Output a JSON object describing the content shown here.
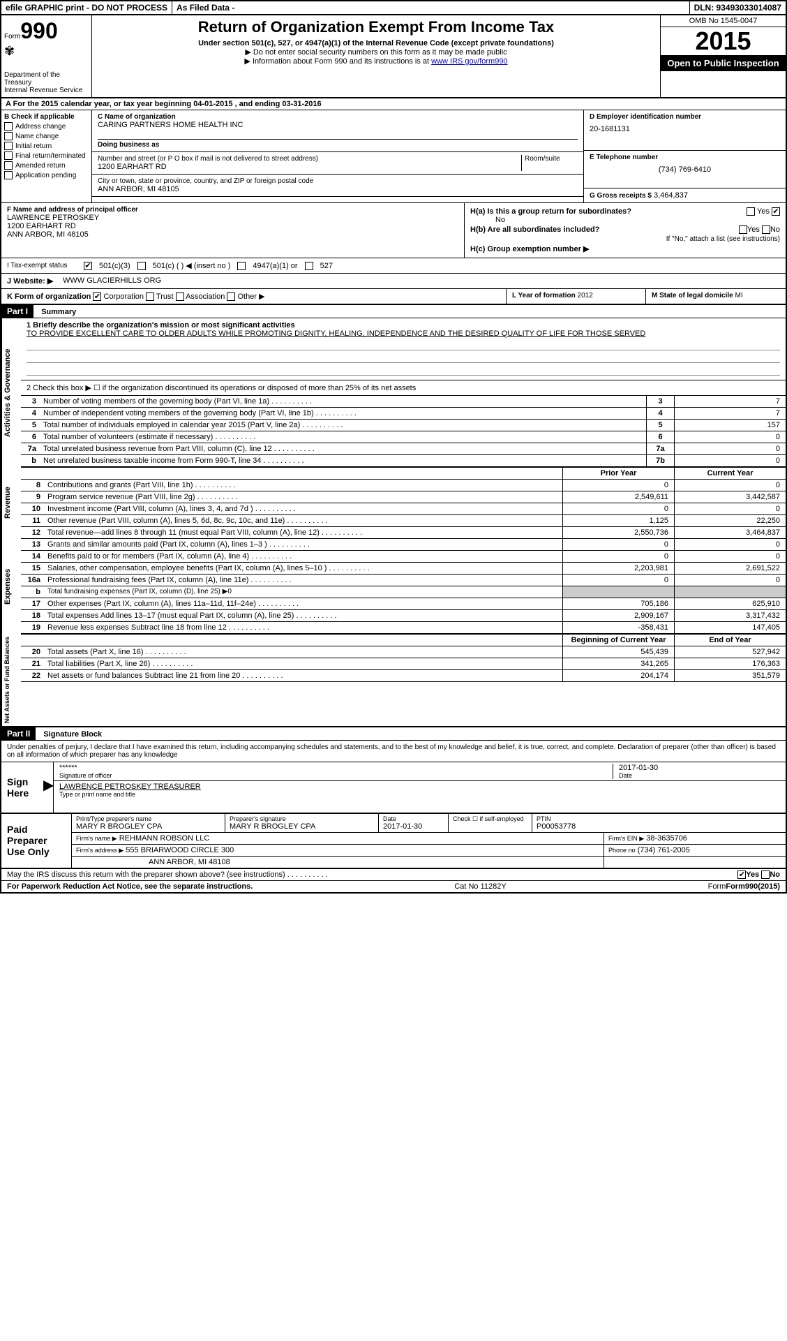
{
  "topbar": {
    "left": "efile GRAPHIC print - DO NOT PROCESS",
    "mid": "As Filed Data -",
    "right": "DLN: 93493033014087"
  },
  "header": {
    "form_prefix": "Form",
    "form_num": "990",
    "dept": "Department of the Treasury",
    "irs": "Internal Revenue Service",
    "title": "Return of Organization Exempt From Income Tax",
    "sub": "Under section 501(c), 527, or 4947(a)(1) of the Internal Revenue Code (except private foundations)",
    "note1": "▶ Do not enter social security numbers on this form as it may be made public",
    "note2_pre": "▶ Information about Form 990 and its instructions is at ",
    "note2_link": "www IRS gov/form990",
    "omb": "OMB No 1545-0047",
    "year": "2015",
    "inspect": "Open to Public Inspection"
  },
  "rowA": {
    "text_pre": "A  For the 2015 calendar year, or tax year beginning ",
    "begin": "04-01-2015",
    "text_mid": "  , and ending ",
    "end": "03-31-2016"
  },
  "colB": {
    "hdr": "B Check if applicable",
    "items": [
      "Address change",
      "Name change",
      "Initial return",
      "Final return/terminated",
      "Amended return",
      "Application pending"
    ]
  },
  "colC": {
    "name_lbl": "C Name of organization",
    "name": "CARING PARTNERS HOME HEALTH INC",
    "dba_lbl": "Doing business as",
    "addr_lbl": "Number and street (or P O box if mail is not delivered to street address)",
    "room_lbl": "Room/suite",
    "addr": "1200 EARHART RD",
    "city_lbl": "City or town, state or province, country, and ZIP or foreign postal code",
    "city": "ANN ARBOR, MI 48105"
  },
  "colD": {
    "lbl": "D Employer identification number",
    "val": "20-1681131"
  },
  "colE": {
    "lbl": "E Telephone number",
    "val": "(734) 769-6410"
  },
  "colG": {
    "lbl": "G Gross receipts $",
    "val": "3,464,837"
  },
  "sectionF": {
    "lbl": "F Name and address of principal officer",
    "name": "LAWRENCE PETROSKEY",
    "addr1": "1200 EARHART RD",
    "addr2": "ANN ARBOR, MI 48105"
  },
  "sectionH": {
    "a_lbl": "H(a) Is this a group return for subordinates?",
    "a_val": "No",
    "b_lbl": "H(b) Are all subordinates included?",
    "b_note": "If \"No,\" attach a list (see instructions)",
    "c_lbl": "H(c) Group exemption number ▶"
  },
  "statusI": {
    "lbl": "I  Tax-exempt status",
    "opts": [
      "501(c)(3)",
      "501(c) (  ) ◀ (insert no )",
      "4947(a)(1) or",
      "527"
    ]
  },
  "website": {
    "lbl": "J  Website: ▶",
    "val": "WWW GLACIERHILLS ORG"
  },
  "rowK": {
    "lbl": "K Form of organization",
    "opts": [
      "Corporation",
      "Trust",
      "Association",
      "Other ▶"
    ]
  },
  "rowL": {
    "lbl": "L Year of formation",
    "val": "2012"
  },
  "rowM": {
    "lbl": "M State of legal domicile",
    "val": "MI"
  },
  "part1": {
    "hdr": "Part I",
    "title": "Summary"
  },
  "mission": {
    "label": "1 Briefly describe the organization's mission or most significant activities",
    "text": "TO PROVIDE EXCELLENT CARE TO OLDER ADULTS WHILE PROMOTING DIGNITY, HEALING, INDEPENDENCE AND THE DESIRED QUALITY OF LIFE FOR THOSE SERVED"
  },
  "line2": "2 Check this box ▶ ☐ if the organization discontinued its operations or disposed of more than 25% of its net assets",
  "govLines": [
    {
      "n": "3",
      "d": "Number of voting members of the governing body (Part VI, line 1a)",
      "id": "3",
      "v": "7"
    },
    {
      "n": "4",
      "d": "Number of independent voting members of the governing body (Part VI, line 1b)",
      "id": "4",
      "v": "7"
    },
    {
      "n": "5",
      "d": "Total number of individuals employed in calendar year 2015 (Part V, line 2a)",
      "id": "5",
      "v": "157"
    },
    {
      "n": "6",
      "d": "Total number of volunteers (estimate if necessary)",
      "id": "6",
      "v": "0"
    },
    {
      "n": "7a",
      "d": "Total unrelated business revenue from Part VIII, column (C), line 12",
      "id": "7a",
      "v": "0"
    },
    {
      "n": "b",
      "d": "Net unrelated business taxable income from Form 990-T, line 34",
      "id": "7b",
      "v": "0"
    }
  ],
  "revHdr": {
    "prior": "Prior Year",
    "current": "Current Year"
  },
  "revenue": [
    {
      "n": "8",
      "d": "Contributions and grants (Part VIII, line 1h)",
      "p": "0",
      "c": "0"
    },
    {
      "n": "9",
      "d": "Program service revenue (Part VIII, line 2g)",
      "p": "2,549,611",
      "c": "3,442,587"
    },
    {
      "n": "10",
      "d": "Investment income (Part VIII, column (A), lines 3, 4, and 7d )",
      "p": "0",
      "c": "0"
    },
    {
      "n": "11",
      "d": "Other revenue (Part VIII, column (A), lines 5, 6d, 8c, 9c, 10c, and 11e)",
      "p": "1,125",
      "c": "22,250"
    },
    {
      "n": "12",
      "d": "Total revenue—add lines 8 through 11 (must equal Part VIII, column (A), line 12)",
      "p": "2,550,736",
      "c": "3,464,837"
    }
  ],
  "expenses": [
    {
      "n": "13",
      "d": "Grants and similar amounts paid (Part IX, column (A), lines 1–3 )",
      "p": "0",
      "c": "0"
    },
    {
      "n": "14",
      "d": "Benefits paid to or for members (Part IX, column (A), line 4)",
      "p": "0",
      "c": "0"
    },
    {
      "n": "15",
      "d": "Salaries, other compensation, employee benefits (Part IX, column (A), lines 5–10 )",
      "p": "2,203,981",
      "c": "2,691,522"
    },
    {
      "n": "16a",
      "d": "Professional fundraising fees (Part IX, column (A), line 11e)",
      "p": "0",
      "c": "0"
    },
    {
      "n": "b",
      "d": "Total fundraising expenses (Part IX, column (D), line 25) ▶0",
      "p": "shade",
      "c": "shade"
    },
    {
      "n": "17",
      "d": "Other expenses (Part IX, column (A), lines 11a–11d, 11f–24e)",
      "p": "705,186",
      "c": "625,910"
    },
    {
      "n": "18",
      "d": "Total expenses Add lines 13–17 (must equal Part IX, column (A), line 25)",
      "p": "2,909,167",
      "c": "3,317,432"
    },
    {
      "n": "19",
      "d": "Revenue less expenses Subtract line 18 from line 12",
      "p": "-358,431",
      "c": "147,405"
    }
  ],
  "netHdr": {
    "begin": "Beginning of Current Year",
    "end": "End of Year"
  },
  "netassets": [
    {
      "n": "20",
      "d": "Total assets (Part X, line 16)",
      "p": "545,439",
      "c": "527,942"
    },
    {
      "n": "21",
      "d": "Total liabilities (Part X, line 26)",
      "p": "341,265",
      "c": "176,363"
    },
    {
      "n": "22",
      "d": "Net assets or fund balances Subtract line 21 from line 20",
      "p": "204,174",
      "c": "351,579"
    }
  ],
  "part2": {
    "hdr": "Part II",
    "title": "Signature Block"
  },
  "sigText": "Under penalties of perjury, I declare that I have examined this return, including accompanying schedules and statements, and to the best of my knowledge and belief, it is true, correct, and complete. Declaration of preparer (other than officer) is based on all information of which preparer has any knowledge",
  "signHere": {
    "label": "Sign Here",
    "stars": "******",
    "sig_lbl": "Signature of officer",
    "date": "2017-01-30",
    "date_lbl": "Date",
    "name": "LAWRENCE PETROSKEY TREASURER",
    "name_lbl": "Type or print name and title"
  },
  "paidPrep": {
    "label": "Paid Preparer Use Only",
    "r1": {
      "c1_lbl": "Print/Type preparer's name",
      "c1": "MARY R BROGLEY CPA",
      "c2_lbl": "Preparer's signature",
      "c2": "MARY R BROGLEY CPA",
      "c3_lbl": "Date",
      "c3": "2017-01-30",
      "c4_lbl": "Check ☐ if self-employed",
      "c5_lbl": "PTIN",
      "c5": "P00053778"
    },
    "r2": {
      "lbl": "Firm's name   ▶",
      "val": "REHMANN ROBSON LLC",
      "ein_lbl": "Firm's EIN ▶",
      "ein": "38-3635706"
    },
    "r3": {
      "lbl": "Firm's address ▶",
      "val": "555 BRIARWOOD CIRCLE 300",
      "ph_lbl": "Phone no",
      "ph": "(734) 761-2005"
    },
    "r4": {
      "val": "ANN ARBOR, MI 48108"
    }
  },
  "discuss": "May the IRS discuss this return with the preparer shown above? (see instructions)",
  "footer": {
    "l": "For Paperwork Reduction Act Notice, see the separate instructions.",
    "m": "Cat No 11282Y",
    "r": "Form990(2015)"
  },
  "vertLabels": {
    "gov": "Activities & Governance",
    "rev": "Revenue",
    "exp": "Expenses",
    "net": "Net Assets or Fund Balances"
  }
}
